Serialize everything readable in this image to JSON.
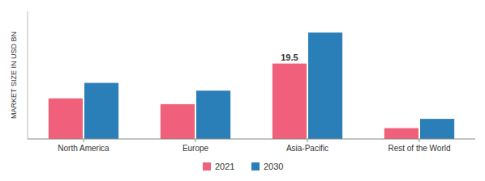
{
  "chart_data": {
    "type": "bar",
    "ylabel": "MARKET SIZE IN USD BN",
    "categories": [
      "North America",
      "Europe",
      "Asia-Pacific",
      "Rest of the World"
    ],
    "series": [
      {
        "name": "2021",
        "color": "#f0607a",
        "values": [
          10.5,
          9.0,
          19.5,
          2.8
        ]
      },
      {
        "name": "2030",
        "color": "#2b7fb8",
        "values": [
          14.5,
          12.5,
          27.5,
          5.2
        ]
      }
    ],
    "ylim": [
      0,
      33
    ],
    "annotations": [
      {
        "text": "19.5",
        "category": "Asia-Pacific",
        "series": "2021",
        "y": 19.5
      }
    ],
    "legend": "bottom",
    "tick_labels": "x",
    "grid": false
  }
}
